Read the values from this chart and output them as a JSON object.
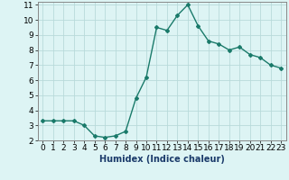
{
  "x": [
    0,
    1,
    2,
    3,
    4,
    5,
    6,
    7,
    8,
    9,
    10,
    11,
    12,
    13,
    14,
    15,
    16,
    17,
    18,
    19,
    20,
    21,
    22,
    23
  ],
  "y": [
    3.3,
    3.3,
    3.3,
    3.3,
    3.0,
    2.3,
    2.2,
    2.3,
    2.6,
    4.8,
    6.2,
    9.5,
    9.3,
    10.3,
    11.0,
    9.6,
    8.6,
    8.4,
    8.0,
    8.2,
    7.7,
    7.5,
    7.0,
    6.8
  ],
  "xlabel": "Humidex (Indice chaleur)",
  "xlim": [
    -0.5,
    23.5
  ],
  "ylim": [
    2,
    11.2
  ],
  "yticks": [
    2,
    3,
    4,
    5,
    6,
    7,
    8,
    9,
    10,
    11
  ],
  "xticks": [
    0,
    1,
    2,
    3,
    4,
    5,
    6,
    7,
    8,
    9,
    10,
    11,
    12,
    13,
    14,
    15,
    16,
    17,
    18,
    19,
    20,
    21,
    22,
    23
  ],
  "line_color": "#1a7a6a",
  "marker": "D",
  "marker_size": 2.0,
  "bg_color": "#ddf4f4",
  "grid_color": "#b8dada",
  "xlabel_color": "#1a3a6a",
  "xlabel_fontsize": 7,
  "tick_fontsize": 6.5,
  "line_width": 1.0
}
